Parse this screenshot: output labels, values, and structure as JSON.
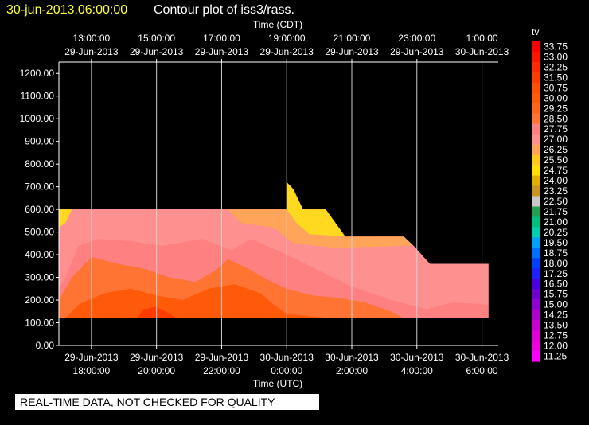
{
  "header": {
    "timestamp": "30-jun-2013,06:00:00",
    "title": "Contour plot of iss3/rass."
  },
  "notice": "REAL-TIME DATA, NOT CHECKED FOR QUALITY",
  "chart_data": {
    "type": "heatmap",
    "title": "Contour plot of iss3/rass.",
    "top_axis_label": "Time (CDT)",
    "xlabel": "Time (UTC)",
    "ylabel": "",
    "xlim_hours_utc": [
      17.0,
      30.5
    ],
    "ylim": [
      0,
      1250
    ],
    "grid": true,
    "y_ticks": [
      "0.00",
      "100.00",
      "200.00",
      "300.00",
      "400.00",
      "500.00",
      "600.00",
      "700.00",
      "800.00",
      "900.00",
      "1000.00",
      "1100.00",
      "1200.00"
    ],
    "x_ticks_bottom": [
      {
        "hour": 18,
        "date": "29-Jun-2013",
        "time": "18:00:00"
      },
      {
        "hour": 20,
        "date": "29-Jun-2013",
        "time": "20:00:00"
      },
      {
        "hour": 22,
        "date": "29-Jun-2013",
        "time": "22:00:00"
      },
      {
        "hour": 24,
        "date": "30-Jun-2013",
        "time": "0:00:00"
      },
      {
        "hour": 26,
        "date": "30-Jun-2013",
        "time": "2:00:00"
      },
      {
        "hour": 28,
        "date": "30-Jun-2013",
        "time": "4:00:00"
      },
      {
        "hour": 30,
        "date": "30-Jun-2013",
        "time": "6:00:00"
      }
    ],
    "x_ticks_top": [
      {
        "hour": 18,
        "time": "13:00:00",
        "date": "29-Jun-2013"
      },
      {
        "hour": 20,
        "time": "15:00:00",
        "date": "29-Jun-2013"
      },
      {
        "hour": 22,
        "time": "17:00:00",
        "date": "29-Jun-2013"
      },
      {
        "hour": 24,
        "time": "19:00:00",
        "date": "29-Jun-2013"
      },
      {
        "hour": 26,
        "time": "21:00:00",
        "date": "29-Jun-2013"
      },
      {
        "hour": 28,
        "time": "23:00:00",
        "date": "29-Jun-2013"
      },
      {
        "hour": 30,
        "time": "1:00:00",
        "date": "30-Jun-2013"
      }
    ],
    "colorbar": {
      "label": "tv",
      "levels": [
        {
          "value": "33.75",
          "color": "#ff0000"
        },
        {
          "value": "33.00",
          "color": "#ff1400"
        },
        {
          "value": "32.25",
          "color": "#ff2800"
        },
        {
          "value": "31.50",
          "color": "#ff3c00"
        },
        {
          "value": "30.75",
          "color": "#ff4f00"
        },
        {
          "value": "30.00",
          "color": "#ff5a0a"
        },
        {
          "value": "29.25",
          "color": "#ff6619"
        },
        {
          "value": "28.50",
          "color": "#ff7433"
        },
        {
          "value": "27.75",
          "color": "#ff8080"
        },
        {
          "value": "27.00",
          "color": "#ff9090"
        },
        {
          "value": "26.25",
          "color": "#ffa55a"
        },
        {
          "value": "25.50",
          "color": "#ffc820"
        },
        {
          "value": "24.75",
          "color": "#ffe000"
        },
        {
          "value": "24.00",
          "color": "#e0b000"
        },
        {
          "value": "23.25",
          "color": "#c89620"
        },
        {
          "value": "22.50",
          "color": "#c8c8c8"
        },
        {
          "value": "21.75",
          "color": "#20a050"
        },
        {
          "value": "21.00",
          "color": "#00c080"
        },
        {
          "value": "20.25",
          "color": "#00d0b0"
        },
        {
          "value": "19.50",
          "color": "#00a0ff"
        },
        {
          "value": "18.75",
          "color": "#0070ff"
        },
        {
          "value": "18.00",
          "color": "#0040ff"
        },
        {
          "value": "17.25",
          "color": "#2020ff"
        },
        {
          "value": "16.50",
          "color": "#4a00e0"
        },
        {
          "value": "15.75",
          "color": "#7000d0"
        },
        {
          "value": "15.00",
          "color": "#9000d0"
        },
        {
          "value": "14.25",
          "color": "#b000d0"
        },
        {
          "value": "13.50",
          "color": "#c800d0"
        },
        {
          "value": "12.75",
          "color": "#e000d8"
        },
        {
          "value": "12.00",
          "color": "#f000e0"
        },
        {
          "value": "11.25",
          "color": "#ff00ff"
        }
      ]
    },
    "data_extent": [
      {
        "hour": 17.0,
        "top": 600
      },
      {
        "hour": 24.0,
        "top": 600
      },
      {
        "hour": 24.0,
        "top": 720
      },
      {
        "hour": 24.2,
        "top": 690
      },
      {
        "hour": 24.5,
        "top": 600
      },
      {
        "hour": 25.2,
        "top": 600
      },
      {
        "hour": 25.8,
        "top": 480
      },
      {
        "hour": 27.6,
        "top": 480
      },
      {
        "hour": 28.4,
        "top": 360
      },
      {
        "hour": 30.2,
        "top": 360
      }
    ],
    "data_bottom": 120,
    "zones": [
      {
        "name": "yellow",
        "color": "#ffd820",
        "points": [
          [
            24.0,
            600
          ],
          [
            24.0,
            720
          ],
          [
            24.2,
            690
          ],
          [
            24.5,
            600
          ],
          [
            25.2,
            600
          ],
          [
            25.8,
            480
          ],
          [
            24.7,
            490
          ],
          [
            24.3,
            540
          ]
        ]
      },
      {
        "name": "light-orange",
        "color": "#ffa55a",
        "points": [
          [
            22.2,
            600
          ],
          [
            24.0,
            600
          ],
          [
            24.3,
            540
          ],
          [
            24.7,
            490
          ],
          [
            25.8,
            480
          ],
          [
            27.6,
            480
          ],
          [
            27.9,
            440
          ],
          [
            25.5,
            430
          ],
          [
            24.2,
            450
          ],
          [
            23.6,
            520
          ],
          [
            22.6,
            540
          ]
        ]
      },
      {
        "name": "pink",
        "color": "#ff9090",
        "points": [
          [
            17.0,
            600
          ],
          [
            22.2,
            600
          ],
          [
            22.6,
            540
          ],
          [
            23.6,
            520
          ],
          [
            24.2,
            450
          ],
          [
            25.5,
            430
          ],
          [
            27.9,
            440
          ],
          [
            28.4,
            360
          ],
          [
            30.2,
            360
          ],
          [
            30.2,
            180
          ],
          [
            29.1,
            190
          ],
          [
            28.3,
            160
          ],
          [
            27.2,
            200
          ],
          [
            26.0,
            260
          ],
          [
            25.0,
            330
          ],
          [
            24.3,
            380
          ],
          [
            23.7,
            420
          ],
          [
            22.9,
            470
          ],
          [
            22.3,
            420
          ],
          [
            21.4,
            470
          ],
          [
            20.2,
            440
          ],
          [
            19.2,
            460
          ],
          [
            18.2,
            470
          ],
          [
            17.6,
            440
          ],
          [
            17.2,
            300
          ],
          [
            17.0,
            250
          ]
        ]
      },
      {
        "name": "yellow-left",
        "color": "#ffd820",
        "points": [
          [
            17.0,
            600
          ],
          [
            17.4,
            600
          ],
          [
            17.2,
            540
          ],
          [
            17.0,
            520
          ]
        ]
      },
      {
        "name": "salmon",
        "color": "#ff8080",
        "points": [
          [
            17.0,
            250
          ],
          [
            17.2,
            300
          ],
          [
            17.6,
            440
          ],
          [
            18.2,
            470
          ],
          [
            19.2,
            460
          ],
          [
            20.2,
            440
          ],
          [
            21.4,
            470
          ],
          [
            22.3,
            420
          ],
          [
            22.9,
            470
          ],
          [
            23.7,
            420
          ],
          [
            24.3,
            380
          ],
          [
            25.0,
            330
          ],
          [
            26.0,
            260
          ],
          [
            27.2,
            200
          ],
          [
            28.3,
            160
          ],
          [
            29.1,
            190
          ],
          [
            30.2,
            180
          ],
          [
            30.2,
            120
          ],
          [
            17.0,
            120
          ]
        ]
      },
      {
        "name": "orange",
        "color": "#ff7433",
        "points": [
          [
            17.0,
            120
          ],
          [
            17.0,
            200
          ],
          [
            17.4,
            300
          ],
          [
            18.0,
            390
          ],
          [
            18.8,
            360
          ],
          [
            19.6,
            340
          ],
          [
            20.4,
            300
          ],
          [
            21.2,
            280
          ],
          [
            21.8,
            330
          ],
          [
            22.2,
            380
          ],
          [
            22.8,
            340
          ],
          [
            23.4,
            290
          ],
          [
            24.0,
            250
          ],
          [
            24.8,
            220
          ],
          [
            25.6,
            210
          ],
          [
            26.4,
            190
          ],
          [
            27.2,
            150
          ],
          [
            27.6,
            120
          ]
        ]
      },
      {
        "name": "dark-orange",
        "color": "#ff5a0a",
        "points": [
          [
            17.2,
            120
          ],
          [
            17.6,
            180
          ],
          [
            18.4,
            230
          ],
          [
            19.2,
            250
          ],
          [
            20.0,
            220
          ],
          [
            20.8,
            200
          ],
          [
            21.6,
            250
          ],
          [
            22.4,
            270
          ],
          [
            23.2,
            230
          ],
          [
            23.6,
            180
          ],
          [
            24.0,
            140
          ],
          [
            24.6,
            130
          ],
          [
            25.4,
            120
          ]
        ]
      },
      {
        "name": "red",
        "color": "#ff3c00",
        "points": [
          [
            19.4,
            120
          ],
          [
            19.6,
            160
          ],
          [
            20.0,
            170
          ],
          [
            20.4,
            140
          ],
          [
            20.6,
            120
          ]
        ]
      }
    ]
  }
}
